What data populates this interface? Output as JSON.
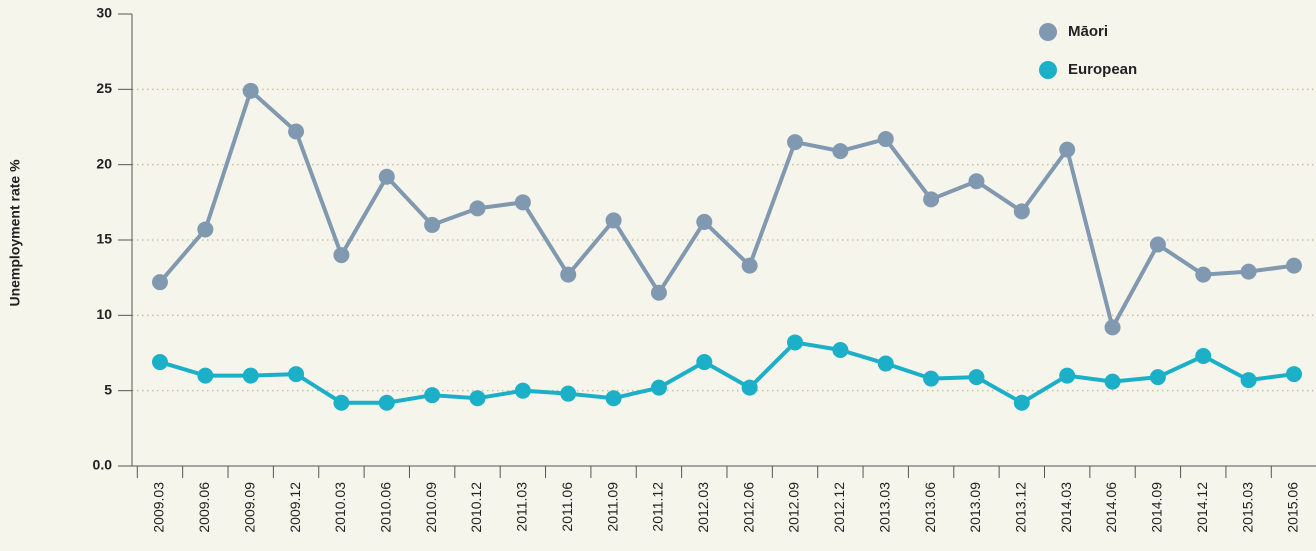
{
  "chart_data": {
    "type": "line",
    "y_label": "Unemployment rate %",
    "categories": [
      "2009.03",
      "2009.06",
      "2009.09",
      "2009.12",
      "2010.03",
      "2010.06",
      "2010.09",
      "2010.12",
      "2011.03",
      "2011.06",
      "2011.09",
      "2011.12",
      "2012.03",
      "2012.06",
      "2012.09",
      "2012.12",
      "2013.03",
      "2013.06",
      "2013.09",
      "2013.12",
      "2014.03",
      "2014.06",
      "2014.09",
      "2014.12",
      "2015.03",
      "2015.06"
    ],
    "series": [
      {
        "name": "Māori",
        "color": "#8199b0",
        "values": [
          12.2,
          15.7,
          24.9,
          22.2,
          14.0,
          19.2,
          16.0,
          17.1,
          17.5,
          12.7,
          16.3,
          11.5,
          16.2,
          13.3,
          21.5,
          20.9,
          21.7,
          17.7,
          18.9,
          16.9,
          21.0,
          9.2,
          14.7,
          12.7,
          12.9,
          13.3
        ]
      },
      {
        "name": "European",
        "color": "#1bb0c8",
        "values": [
          6.9,
          6.0,
          6.0,
          6.1,
          4.2,
          4.2,
          4.7,
          4.5,
          5.0,
          4.8,
          4.5,
          5.2,
          6.9,
          5.2,
          8.2,
          7.7,
          6.8,
          5.8,
          5.9,
          4.2,
          6.0,
          5.6,
          5.9,
          7.3,
          5.7,
          6.1
        ]
      }
    ],
    "ylim": [
      0,
      30
    ],
    "yticks": [
      {
        "value": 0,
        "label": "0.0"
      },
      5,
      10,
      15,
      20,
      25,
      30
    ],
    "grid": true,
    "legend": "top-right"
  }
}
